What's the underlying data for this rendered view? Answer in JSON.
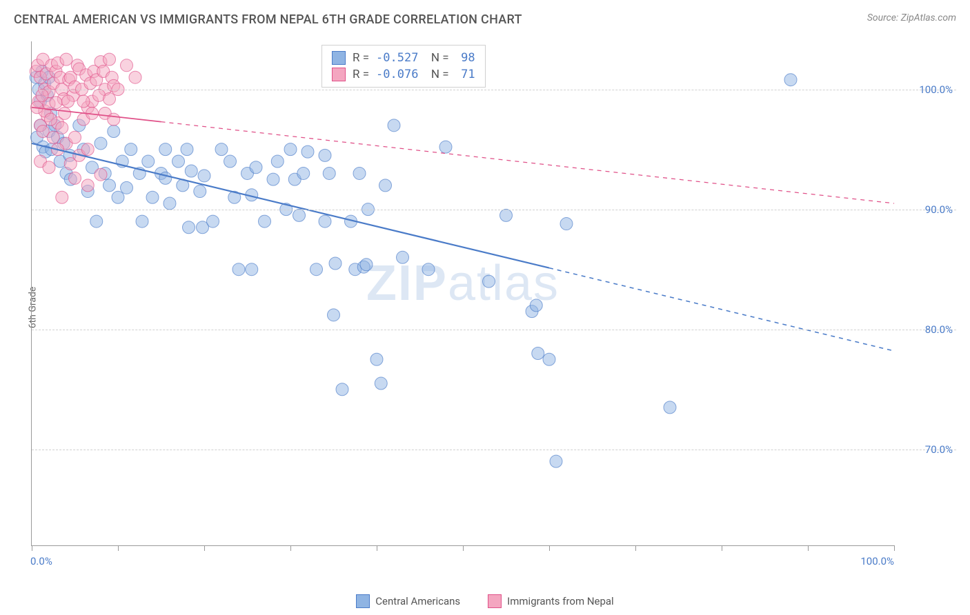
{
  "header": {
    "title": "CENTRAL AMERICAN VS IMMIGRANTS FROM NEPAL 6TH GRADE CORRELATION CHART",
    "source": "Source: ZipAtlas.com"
  },
  "watermark": {
    "part1": "ZIP",
    "part2": "atlas"
  },
  "chart": {
    "type": "scatter",
    "background_color": "#ffffff",
    "grid_color": "#d0d0d0",
    "axis_color": "#999999",
    "text_color": "#555555",
    "tick_label_color": "#4a7bc8",
    "yaxis_title": "6th Grade",
    "xlim": [
      0,
      100
    ],
    "ylim": [
      62,
      104
    ],
    "xticks": [
      0,
      10,
      20,
      30,
      40,
      50,
      60,
      70,
      80,
      90,
      100
    ],
    "xtick_labels": {
      "0": "0.0%",
      "100": "100.0%"
    },
    "yticks": [
      70,
      80,
      90,
      100
    ],
    "ytick_labels": [
      "70.0%",
      "80.0%",
      "90.0%",
      "100.0%"
    ],
    "marker_radius": 9,
    "marker_opacity": 0.5,
    "series": [
      {
        "name": "Central Americans",
        "color_fill": "#8fb4e3",
        "color_stroke": "#4a7bc8",
        "R": "-0.527",
        "N": "98",
        "trend": {
          "x1": 0,
          "y1": 95.5,
          "x2": 100,
          "y2": 78.2,
          "solid_until_x": 60,
          "stroke_width": 2.2
        },
        "points": [
          [
            0.5,
            101
          ],
          [
            0.8,
            100
          ],
          [
            1.0,
            99
          ],
          [
            1.2,
            101.5
          ],
          [
            1.5,
            100.5
          ],
          [
            1.8,
            99.5
          ],
          [
            2.0,
            101
          ],
          [
            2.2,
            98
          ],
          [
            0.6,
            96
          ],
          [
            1.0,
            97
          ],
          [
            1.3,
            95.2
          ],
          [
            1.6,
            94.8
          ],
          [
            2.0,
            96.5
          ],
          [
            2.3,
            95
          ],
          [
            2.7,
            97
          ],
          [
            3.0,
            96
          ],
          [
            3.3,
            94
          ],
          [
            3.7,
            95.5
          ],
          [
            4.0,
            93
          ],
          [
            4.4,
            94.5
          ],
          [
            5.5,
            97
          ],
          [
            6.0,
            95
          ],
          [
            6.5,
            91.5
          ],
          [
            7.0,
            93.5
          ],
          [
            8.0,
            95.5
          ],
          [
            8.5,
            93
          ],
          [
            9.0,
            92
          ],
          [
            9.5,
            96.5
          ],
          [
            10,
            91
          ],
          [
            10.5,
            94
          ],
          [
            11,
            91.8
          ],
          [
            11.5,
            95
          ],
          [
            12.5,
            93
          ],
          [
            12.8,
            89
          ],
          [
            13.5,
            94
          ],
          [
            14,
            91
          ],
          [
            15,
            93
          ],
          [
            15.5,
            95
          ],
          [
            16,
            90.5
          ],
          [
            17,
            94
          ],
          [
            17.5,
            92
          ],
          [
            18,
            95
          ],
          [
            18.5,
            93.2
          ],
          [
            19.5,
            91.5
          ],
          [
            19.8,
            88.5
          ],
          [
            20,
            92.8
          ],
          [
            21,
            89
          ],
          [
            22,
            95
          ],
          [
            23,
            94
          ],
          [
            23.5,
            91
          ],
          [
            24,
            85
          ],
          [
            25,
            93
          ],
          [
            25.5,
            91.2
          ],
          [
            26,
            93.5
          ],
          [
            27,
            89
          ],
          [
            28,
            92.5
          ],
          [
            28.5,
            94
          ],
          [
            29.5,
            90
          ],
          [
            30,
            95
          ],
          [
            30.5,
            92.5
          ],
          [
            31,
            89.5
          ],
          [
            31.5,
            93
          ],
          [
            32,
            94.8
          ],
          [
            33,
            85
          ],
          [
            34,
            89
          ],
          [
            34.5,
            93
          ],
          [
            35,
            81.2
          ],
          [
            35.2,
            85.5
          ],
          [
            36,
            75
          ],
          [
            37,
            89
          ],
          [
            37.5,
            85
          ],
          [
            38,
            93
          ],
          [
            38.5,
            85.2
          ],
          [
            38.8,
            85.4
          ],
          [
            39,
            90
          ],
          [
            40,
            77.5
          ],
          [
            40.5,
            75.5
          ],
          [
            41,
            92
          ],
          [
            42,
            97
          ],
          [
            43,
            86
          ],
          [
            46,
            85
          ],
          [
            48,
            95.2
          ],
          [
            53,
            84
          ],
          [
            55,
            89.5
          ],
          [
            58,
            81.5
          ],
          [
            58.5,
            82
          ],
          [
            58.7,
            78
          ],
          [
            60,
            77.5
          ],
          [
            60.8,
            69
          ],
          [
            74,
            73.5
          ],
          [
            88,
            100.8
          ],
          [
            7.5,
            89
          ],
          [
            15.5,
            92.6
          ],
          [
            18.2,
            88.5
          ],
          [
            25.5,
            85
          ],
          [
            34,
            94.5
          ],
          [
            62,
            88.8
          ],
          [
            4.5,
            92.5
          ]
        ]
      },
      {
        "name": "Immigrants from Nepal",
        "color_fill": "#f4a6c0",
        "color_stroke": "#e05088",
        "R": "-0.076",
        "N": "71",
        "trend": {
          "x1": 0,
          "y1": 98.5,
          "x2": 100,
          "y2": 90.5,
          "solid_until_x": 15,
          "stroke_width": 1.8
        },
        "points": [
          [
            0.5,
            101.5
          ],
          [
            0.7,
            102
          ],
          [
            1.0,
            101
          ],
          [
            1.3,
            102.5
          ],
          [
            1.5,
            100
          ],
          [
            1.7,
            101.3
          ],
          [
            2.0,
            99.8
          ],
          [
            2.3,
            102
          ],
          [
            2.5,
            100.5
          ],
          [
            2.8,
            101.5
          ],
          [
            3.0,
            102.2
          ],
          [
            3.3,
            101
          ],
          [
            3.5,
            100
          ],
          [
            3.7,
            99.2
          ],
          [
            4.0,
            102.5
          ],
          [
            4.3,
            100.8
          ],
          [
            4.5,
            101
          ],
          [
            4.8,
            99.5
          ],
          [
            5.0,
            100.2
          ],
          [
            5.3,
            102
          ],
          [
            5.5,
            101.7
          ],
          [
            5.8,
            100
          ],
          [
            6.0,
            97.5
          ],
          [
            6.3,
            101.2
          ],
          [
            6.5,
            98.5
          ],
          [
            6.8,
            100.5
          ],
          [
            7.0,
            99
          ],
          [
            7.2,
            101.5
          ],
          [
            7.5,
            100.8
          ],
          [
            8.0,
            102.3
          ],
          [
            8.3,
            101.5
          ],
          [
            8.5,
            100
          ],
          [
            9.0,
            102.5
          ],
          [
            9.3,
            101
          ],
          [
            9.5,
            100.3
          ],
          [
            1.0,
            97
          ],
          [
            1.3,
            96.5
          ],
          [
            1.8,
            97.8
          ],
          [
            2.5,
            96
          ],
          [
            3.0,
            97.2
          ],
          [
            3.5,
            96.8
          ],
          [
            4.0,
            95.5
          ],
          [
            0.8,
            99
          ],
          [
            1.5,
            98.2
          ],
          [
            2.0,
            98.8
          ],
          [
            1.0,
            94
          ],
          [
            2.0,
            93.5
          ],
          [
            3.0,
            95
          ],
          [
            4.5,
            93.8
          ],
          [
            5.5,
            94.5
          ],
          [
            5.0,
            92.6
          ],
          [
            8.0,
            92.9
          ],
          [
            6.5,
            92
          ],
          [
            3.5,
            91
          ],
          [
            5.0,
            96
          ],
          [
            6.0,
            99
          ],
          [
            6.5,
            95
          ],
          [
            7.0,
            98
          ],
          [
            7.8,
            99.5
          ],
          [
            8.5,
            98
          ],
          [
            9.0,
            99.2
          ],
          [
            9.5,
            97.5
          ],
          [
            10,
            100
          ],
          [
            11,
            102
          ],
          [
            12,
            101
          ],
          [
            0.6,
            98.5
          ],
          [
            1.2,
            99.5
          ],
          [
            2.2,
            97.5
          ],
          [
            2.8,
            98.9
          ],
          [
            3.8,
            98
          ],
          [
            4.2,
            99
          ]
        ]
      }
    ],
    "legend_bottom": [
      {
        "label": "Central Americans",
        "fill": "#8fb4e3",
        "stroke": "#4a7bc8"
      },
      {
        "label": "Immigrants from Nepal",
        "fill": "#f4a6c0",
        "stroke": "#e05088"
      }
    ]
  }
}
